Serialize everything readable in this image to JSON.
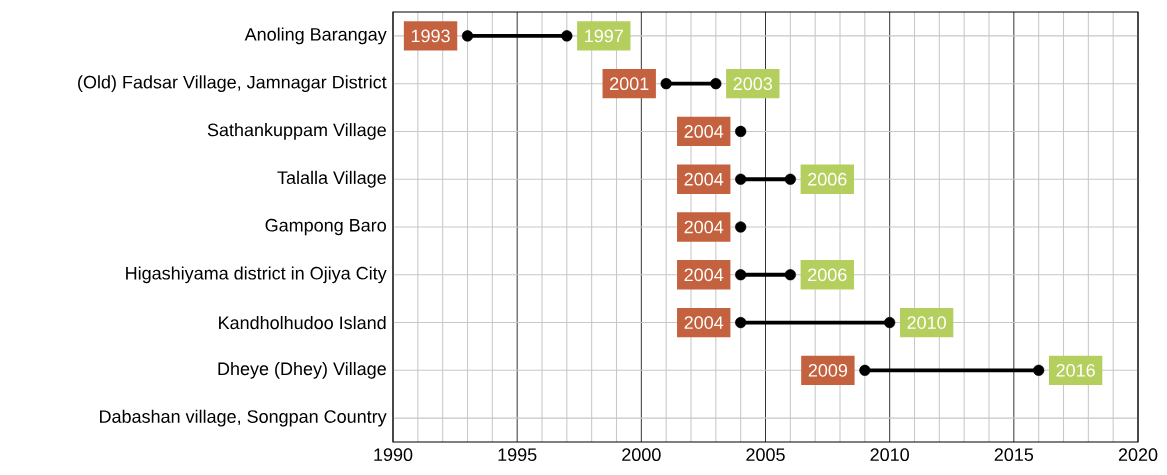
{
  "chart_data": {
    "type": "bar",
    "orientation": "horizontal",
    "categories": [
      "Anoling Barangay",
      "(Old) Fadsar Village, Jamnagar District",
      "Sathankuppam Village",
      "Talalla Village",
      "Gampong Baro",
      "Higashiyama district in Ojiya City",
      "Kandholhudoo Island",
      "Dheye (Dhey) Village",
      "Dabashan village, Songpan Country"
    ],
    "series": [
      {
        "type": "bar",
        "color": "#000000",
        "base": [
          1993,
          2001,
          null,
          2004,
          null,
          2004,
          2004,
          2009,
          null
        ],
        "values": [
          4,
          2,
          null,
          2,
          null,
          2,
          6,
          7,
          null
        ]
      },
      {
        "type": "scatter",
        "color": "#000000",
        "values": [
          1993,
          2001,
          2004,
          2004,
          2004,
          2004,
          2004,
          2009,
          null
        ],
        "value_labels": [
          "1993",
          "2001",
          "2004",
          "2004",
          "2004",
          "2004",
          "2004",
          "2009",
          null
        ]
      },
      {
        "type": "scatter",
        "color": "#000000",
        "values": [
          1997,
          2003,
          null,
          2006,
          null,
          2006,
          2010,
          2016,
          null
        ],
        "value_labels": [
          "1997",
          "2003",
          null,
          "2006",
          null,
          "2006",
          "2010",
          "2016",
          null
        ]
      }
    ],
    "xlim": [
      1990,
      2020
    ],
    "xticks": [
      1990,
      1995,
      2000,
      2005,
      2010,
      2015,
      2020
    ],
    "grid": true,
    "marker": "circle"
  }
}
